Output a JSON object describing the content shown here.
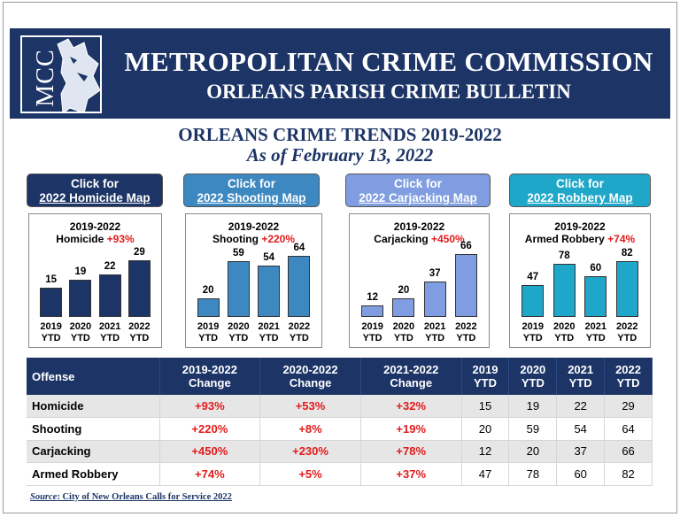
{
  "header": {
    "logo_text": "MCC",
    "title": "METROPOLITAN CRIME COMMISSION",
    "subtitle": "ORLEANS PARISH CRIME BULLETIN"
  },
  "trends": {
    "title": "ORLEANS CRIME TRENDS 2019-2022",
    "as_of": "As of February 13, 2022"
  },
  "colors": {
    "navy": "#1c3466",
    "homicide": "#1c3466",
    "shooting": "#3d88c0",
    "carjacking": "#7f9de0",
    "robbery": "#1fa7c9",
    "accent_red": "#e21b1b"
  },
  "map_buttons": [
    {
      "line1": "Click for",
      "line2": "2022 Homicide Map"
    },
    {
      "line1": "Click for",
      "line2": "2022 Shooting Map"
    },
    {
      "line1": "Click for",
      "line2": "2022 Carjacking Map"
    },
    {
      "line1": "Click for",
      "line2": "2022 Robbery Map"
    }
  ],
  "chart_data": [
    {
      "type": "bar",
      "title_line1": "2019-2022",
      "crime": "Homicide",
      "change": "+93%",
      "categories": [
        "2019 YTD",
        "2020 YTD",
        "2021 YTD",
        "2022 YTD"
      ],
      "values": [
        15,
        19,
        22,
        29
      ],
      "ylim": [
        0,
        40
      ]
    },
    {
      "type": "bar",
      "title_line1": "2019-2022",
      "crime": "Shooting",
      "change": "+220%",
      "categories": [
        "2019 YTD",
        "2020 YTD",
        "2021 YTD",
        "2022 YTD"
      ],
      "values": [
        20,
        59,
        54,
        64
      ],
      "ylim": [
        0,
        82
      ]
    },
    {
      "type": "bar",
      "title_line1": "2019-2022",
      "crime": "Carjacking",
      "change": "+450%",
      "categories": [
        "2019 YTD",
        "2020 YTD",
        "2021 YTD",
        "2022 YTD"
      ],
      "values": [
        12,
        20,
        37,
        66
      ],
      "ylim": [
        0,
        82
      ]
    },
    {
      "type": "bar",
      "title_line1": "2019-2022",
      "crime": "Armed Robbery",
      "change": "+74%",
      "categories": [
        "2019 YTD",
        "2020 YTD",
        "2021 YTD",
        "2022 YTD"
      ],
      "values": [
        47,
        78,
        60,
        82
      ],
      "ylim": [
        0,
        115
      ]
    }
  ],
  "table": {
    "headers": [
      {
        "l1": "Offense",
        "l2": ""
      },
      {
        "l1": "2019-2022",
        "l2": "Change"
      },
      {
        "l1": "2020-2022",
        "l2": "Change"
      },
      {
        "l1": "2021-2022",
        "l2": "Change"
      },
      {
        "l1": "2019",
        "l2": "YTD"
      },
      {
        "l1": "2020",
        "l2": "YTD"
      },
      {
        "l1": "2021",
        "l2": "YTD"
      },
      {
        "l1": "2022",
        "l2": "YTD"
      }
    ],
    "rows": [
      [
        "Homicide",
        "+93%",
        "+53%",
        "+32%",
        "15",
        "19",
        "22",
        "29"
      ],
      [
        "Shooting",
        "+220%",
        "+8%",
        "+19%",
        "20",
        "59",
        "54",
        "64"
      ],
      [
        "Carjacking",
        "+450%",
        "+230%",
        "+78%",
        "12",
        "20",
        "37",
        "66"
      ],
      [
        "Armed Robbery",
        "+74%",
        "+5%",
        "+37%",
        "47",
        "78",
        "60",
        "82"
      ]
    ]
  },
  "source": {
    "label": "Source",
    "text": ":  City of New Orleans Calls for Service 2022"
  }
}
